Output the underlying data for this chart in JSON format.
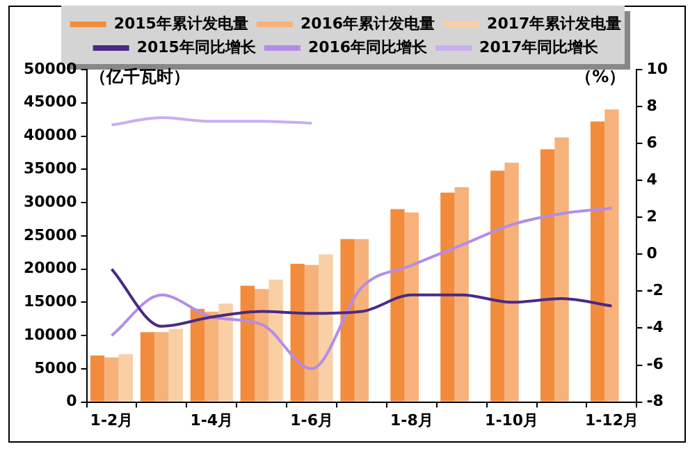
{
  "chart_data": {
    "type": "bar",
    "ylabel": "（亿千瓦时）",
    "y2label": "（%）",
    "categories": [
      "1-2月",
      null,
      "1-4月",
      null,
      "1-6月",
      null,
      "1-8月",
      null,
      "1-10月",
      null,
      "1-12月"
    ],
    "series": [
      {
        "name": "2015年累计发电量",
        "color": "#f28c3c",
        "values": [
          7000,
          10500,
          14000,
          17500,
          20800,
          24500,
          29000,
          31500,
          34800,
          38000,
          42200
        ]
      },
      {
        "name": "2016年累计发电量",
        "color": "#f6b27a",
        "values": [
          6700,
          10500,
          13600,
          17000,
          20600,
          24500,
          28500,
          32300,
          36000,
          39800,
          44000
        ]
      },
      {
        "name": "2017年累计发电量",
        "color": "#f9cfa6",
        "values": [
          7200,
          11000,
          14800,
          18400,
          22200,
          null,
          null,
          null,
          null,
          null,
          null
        ]
      },
      {
        "name": "2015年同比增长",
        "type": "line",
        "axis": "y2",
        "color": "#4b2a83",
        "values": [
          -0.8,
          -3.9,
          -3.4,
          -3.1,
          -3.2,
          -3.1,
          -2.2,
          -2.2,
          -2.6,
          -2.4,
          -2.8
        ]
      },
      {
        "name": "2016年同比增长",
        "type": "line",
        "axis": "y2",
        "color": "#b48ce8",
        "values": [
          -4.4,
          -2.2,
          -3.4,
          -3.8,
          -6.2,
          -1.8,
          -0.6,
          0.5,
          1.6,
          2.2,
          2.5
        ]
      },
      {
        "name": "2017年同比增长",
        "type": "line",
        "axis": "y2",
        "color": "#c9aef0",
        "values": [
          7.0,
          7.4,
          7.2,
          7.2,
          7.1,
          null,
          null,
          null,
          null,
          null,
          null
        ]
      }
    ],
    "ylim": [
      0,
      50000
    ],
    "yticks": [
      0,
      5000,
      10000,
      15000,
      20000,
      25000,
      30000,
      35000,
      40000,
      45000,
      50000
    ],
    "y2lim": [
      -8,
      10
    ],
    "y2ticks": [
      -8,
      -6,
      -4,
      -2,
      0,
      2,
      4,
      6,
      8,
      10
    ],
    "grid": false,
    "legend": "top",
    "marker": "none"
  }
}
